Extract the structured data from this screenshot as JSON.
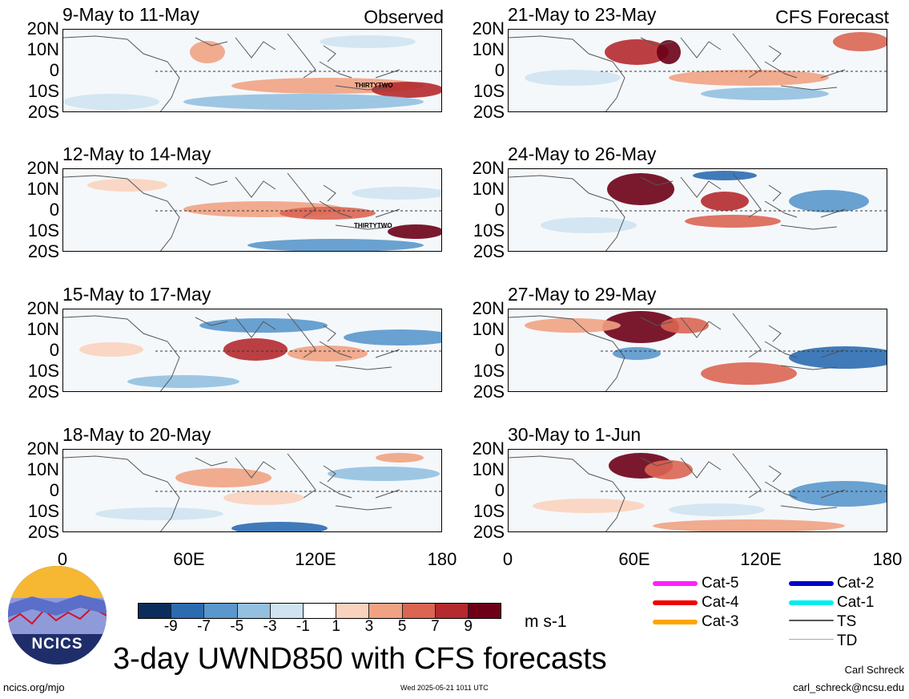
{
  "panels": {
    "left": [
      {
        "title": "9-May to 11-May"
      },
      {
        "title": "12-May to 14-May"
      },
      {
        "title": "15-May to 17-May"
      },
      {
        "title": "18-May to 20-May"
      }
    ],
    "right": [
      {
        "title": "21-May to 23-May"
      },
      {
        "title": "24-May to 26-May"
      },
      {
        "title": "27-May to 29-May"
      },
      {
        "title": "30-May to 1-Jun"
      }
    ],
    "left_tag": "Observed",
    "right_tag": "CFS Forecast"
  },
  "storm_labels": [
    "THIRTYTWO",
    "THIRTYTWO"
  ],
  "lat_labels": [
    "20N",
    "10N",
    "0",
    "10S",
    "20S"
  ],
  "lon_labels": [
    "0",
    "60E",
    "120E",
    "180"
  ],
  "colorbar": {
    "labels": [
      "-9",
      "-7",
      "-5",
      "-3",
      "-1",
      "1",
      "3",
      "5",
      "7",
      "9"
    ],
    "colors": [
      "#0b2d5c",
      "#2c6bb0",
      "#5a97cc",
      "#94c0e0",
      "#cfe3f1",
      "#ffffff",
      "#fad3be",
      "#f1a283",
      "#db6552",
      "#b52a2e",
      "#6d0017"
    ],
    "units": "m s-1"
  },
  "main_title": "3-day UWND850 with CFS forecasts",
  "legend": [
    {
      "label": "Cat-5",
      "color": "#ff22ff"
    },
    {
      "label": "Cat-4",
      "color": "#ee0000"
    },
    {
      "label": "Cat-3",
      "color": "#ffa500"
    },
    {
      "label": "Cat-2",
      "color": "#0000cc"
    },
    {
      "label": "Cat-1",
      "color": "#00eeee"
    },
    {
      "label": "TS",
      "color": "#555555"
    },
    {
      "label": "TD",
      "color": "#aaaaaa"
    }
  ],
  "logo_text": "NCICS",
  "footer": {
    "left": "ncics.org/mjo",
    "date": "Wed 2025-05-21 1011 UTC",
    "author": "Carl Schreck",
    "email": "carl_schreck@ncsu.edu"
  }
}
